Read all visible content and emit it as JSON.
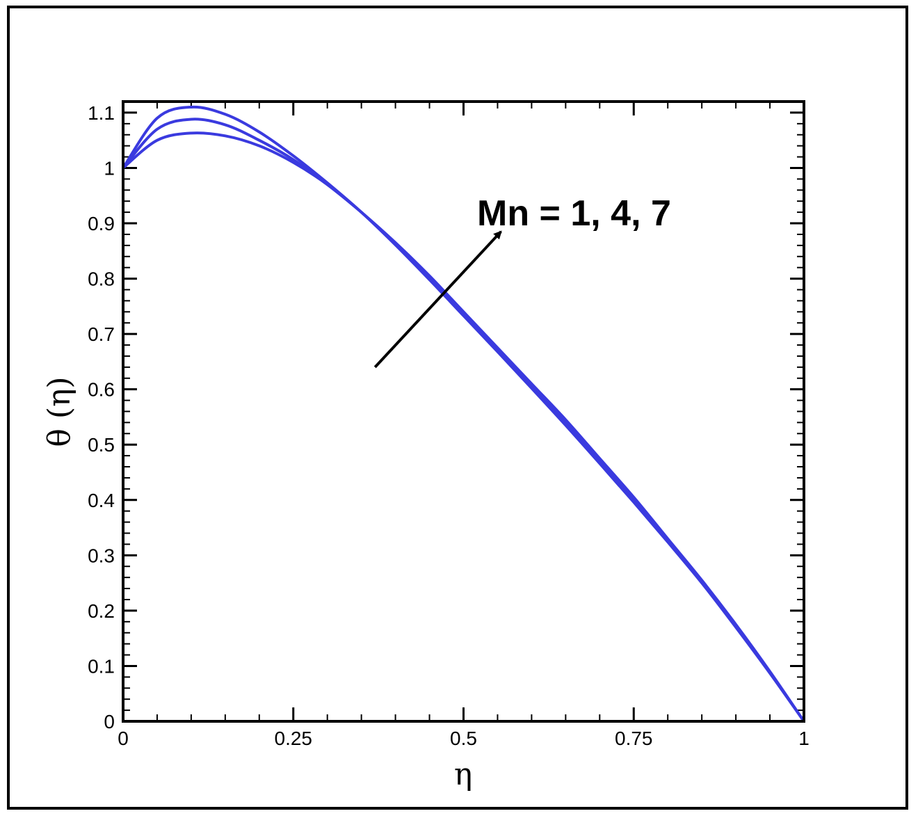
{
  "chart_data": {
    "type": "line",
    "title": "",
    "xlabel": "η",
    "ylabel": "θ (η)",
    "xlim": [
      0,
      1
    ],
    "ylim": [
      0,
      1.12
    ],
    "x_ticks": [
      0,
      0.25,
      0.5,
      0.75,
      1
    ],
    "x_tick_labels": [
      "0",
      "0.25",
      "0.5",
      "0.75",
      "1"
    ],
    "y_ticks": [
      0,
      0.1,
      0.2,
      0.3,
      0.4,
      0.5,
      0.6,
      0.7,
      0.8,
      0.9,
      1,
      1.1
    ],
    "y_tick_labels": [
      "0",
      "0.1",
      "0.2",
      "0.3",
      "0.4",
      "0.5",
      "0.6",
      "0.7",
      "0.8",
      "0.9",
      "1",
      "1.1"
    ],
    "grid": false,
    "line_color": "#3a3adf",
    "annotation": {
      "text": "Mn = 1, 4, 7",
      "arrow_from": [
        0.37,
        0.64
      ],
      "arrow_to": [
        0.555,
        0.885
      ]
    },
    "x": [
      0,
      0.05,
      0.1,
      0.15,
      0.2,
      0.25,
      0.3,
      0.35,
      0.4,
      0.45,
      0.5,
      0.55,
      0.6,
      0.65,
      0.7,
      0.75,
      0.8,
      0.85,
      0.9,
      0.95,
      1
    ],
    "series": [
      {
        "values": [
          1.0,
          1.05,
          1.063,
          1.058,
          1.04,
          1.01,
          0.97,
          0.92,
          0.865,
          0.805,
          0.74,
          0.675,
          0.61,
          0.545,
          0.475,
          0.405,
          0.33,
          0.255,
          0.175,
          0.09,
          0.0
        ]
      },
      {
        "values": [
          1.0,
          1.07,
          1.088,
          1.078,
          1.05,
          1.015,
          0.97,
          0.92,
          0.863,
          0.802,
          0.737,
          0.673,
          0.607,
          0.54,
          0.47,
          0.4,
          0.327,
          0.252,
          0.172,
          0.088,
          0.0
        ]
      },
      {
        "values": [
          1.0,
          1.09,
          1.11,
          1.097,
          1.065,
          1.022,
          0.973,
          0.92,
          0.861,
          0.798,
          0.733,
          0.668,
          0.602,
          0.535,
          0.466,
          0.396,
          0.324,
          0.25,
          0.17,
          0.087,
          0.0
        ]
      }
    ]
  }
}
